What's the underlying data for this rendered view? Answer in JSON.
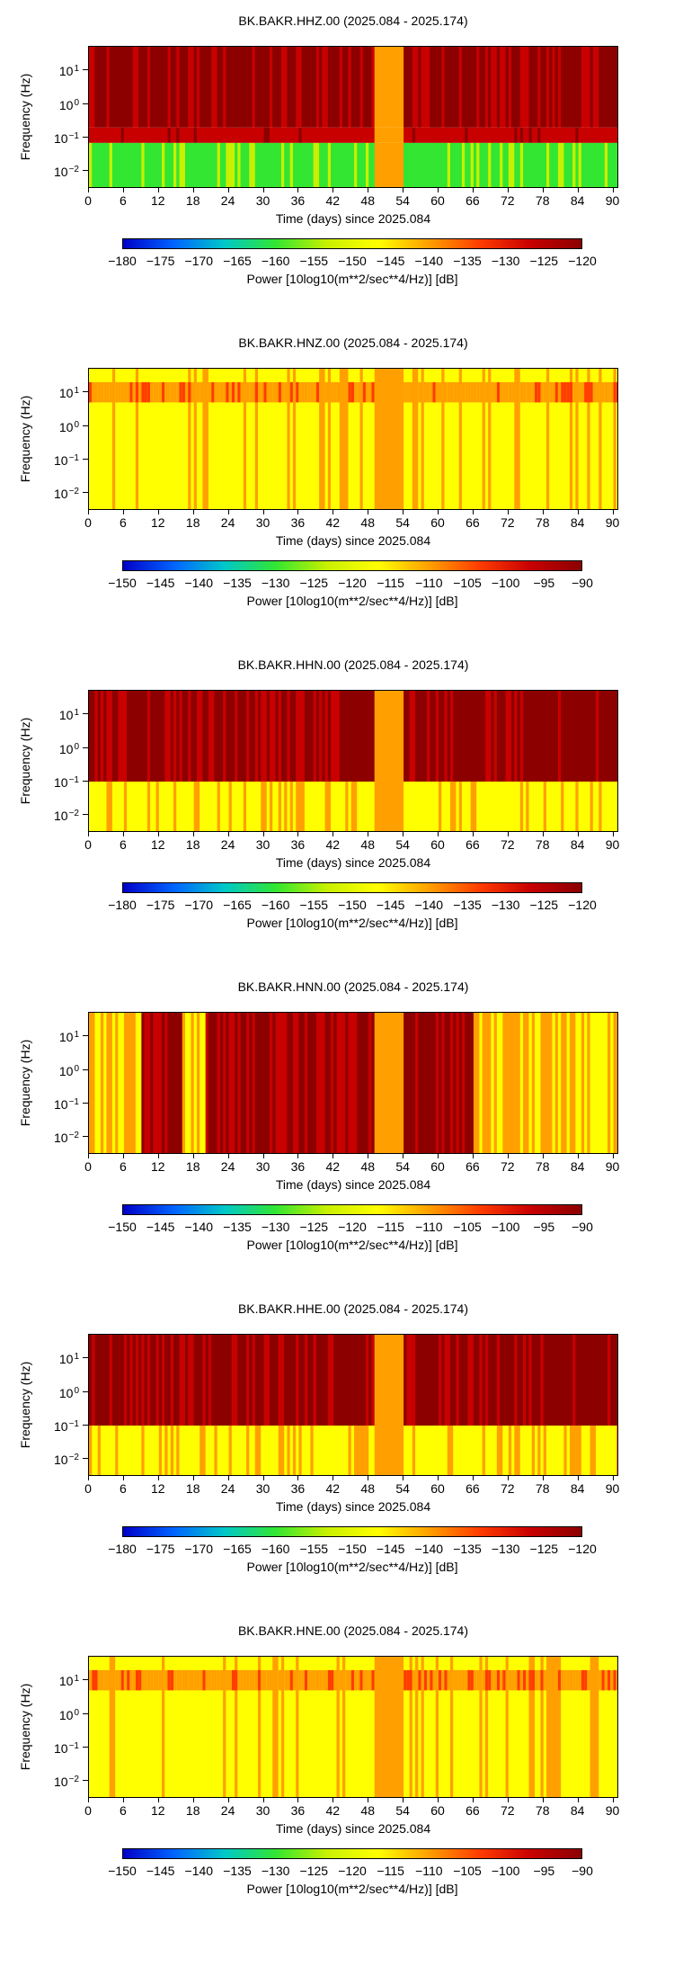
{
  "charts": [
    {
      "title": "BK.BAKR.HHZ.00 (2025.084 - 2025.174)",
      "ylabel": "Frequency (Hz)",
      "xlabel": "Time (days) since 2025.084",
      "colorbar_label": "Power [10log10(m**2/sec**4/Hz)] [dB]",
      "colorbar_ticks": [
        "−180",
        "−175",
        "−170",
        "−165",
        "−160",
        "−155",
        "−150",
        "−145",
        "−140",
        "−135",
        "−130",
        "−125",
        "−120"
      ]
    },
    {
      "title": "BK.BAKR.HNZ.00 (2025.084 - 2025.174)",
      "ylabel": "Frequency (Hz)",
      "xlabel": "Time (days) since 2025.084",
      "colorbar_label": "Power [10log10(m**2/sec**4/Hz)] [dB]",
      "colorbar_ticks": [
        "−150",
        "−145",
        "−140",
        "−135",
        "−130",
        "−125",
        "−120",
        "−115",
        "−110",
        "−105",
        "−100",
        "−95",
        "−90"
      ]
    },
    {
      "title": "BK.BAKR.HHN.00 (2025.084 - 2025.174)",
      "ylabel": "Frequency (Hz)",
      "xlabel": "Time (days) since 2025.084",
      "colorbar_label": "Power [10log10(m**2/sec**4/Hz)] [dB]",
      "colorbar_ticks": [
        "−180",
        "−175",
        "−170",
        "−165",
        "−160",
        "−155",
        "−150",
        "−145",
        "−140",
        "−135",
        "−130",
        "−125",
        "−120"
      ]
    },
    {
      "title": "BK.BAKR.HNN.00 (2025.084 - 2025.174)",
      "ylabel": "Frequency (Hz)",
      "xlabel": "Time (days) since 2025.084",
      "colorbar_label": "Power [10log10(m**2/sec**4/Hz)] [dB]",
      "colorbar_ticks": [
        "−150",
        "−145",
        "−140",
        "−135",
        "−130",
        "−125",
        "−120",
        "−115",
        "−110",
        "−105",
        "−100",
        "−95",
        "−90"
      ]
    },
    {
      "title": "BK.BAKR.HHE.00 (2025.084 - 2025.174)",
      "ylabel": "Frequency (Hz)",
      "xlabel": "Time (days) since 2025.084",
      "colorbar_label": "Power [10log10(m**2/sec**4/Hz)] [dB]",
      "colorbar_ticks": [
        "−180",
        "−175",
        "−170",
        "−165",
        "−160",
        "−155",
        "−150",
        "−145",
        "−140",
        "−135",
        "−130",
        "−125",
        "−120"
      ]
    },
    {
      "title": "BK.BAKR.HNE.00 (2025.084 - 2025.174)",
      "ylabel": "Frequency (Hz)",
      "xlabel": "Time (days) since 2025.084",
      "colorbar_label": "Power [10log10(m**2/sec**4/Hz)] [dB]",
      "colorbar_ticks": [
        "−150",
        "−145",
        "−140",
        "−135",
        "−130",
        "−125",
        "−120",
        "−115",
        "−110",
        "−105",
        "−100",
        "−95",
        "−90"
      ]
    }
  ],
  "chart_data": [
    {
      "type": "heatmap",
      "title": "BK.BAKR.HHZ.00 (2025.084 - 2025.174)",
      "xlim": [
        0,
        91
      ],
      "ylim_hz": [
        0.003,
        50
      ],
      "yscale": "log",
      "clim": [
        -180,
        -120
      ],
      "xticks": [
        "0",
        "6",
        "12",
        "18",
        "24",
        "30",
        "36",
        "42",
        "48",
        "54",
        "60",
        "66",
        "72",
        "78",
        "84",
        "90"
      ],
      "yticks": [
        "10^1",
        "10^0",
        "10^-1",
        "10^-2"
      ],
      "noise_bands": [
        {
          "hz_range": [
            0.2,
            50
          ],
          "level_db": -122
        },
        {
          "hz_range": [
            0.07,
            0.2
          ],
          "level_db": -126
        },
        {
          "hz_range": [
            0.003,
            0.07
          ],
          "level_db": -158
        }
      ],
      "data_gap_days": [
        49,
        54
      ]
    },
    {
      "type": "heatmap",
      "title": "BK.BAKR.HNZ.00 (2025.084 - 2025.174)",
      "xlim": [
        0,
        91
      ],
      "ylim_hz": [
        0.003,
        50
      ],
      "yscale": "log",
      "clim": [
        -150,
        -90
      ],
      "xticks": [
        "0",
        "6",
        "12",
        "18",
        "24",
        "30",
        "36",
        "42",
        "48",
        "54",
        "60",
        "66",
        "72",
        "78",
        "84",
        "90"
      ],
      "yticks": [
        "10^1",
        "10^0",
        "10^-1",
        "10^-2"
      ],
      "noise_bands": [
        {
          "hz_range": [
            5,
            20
          ],
          "level_db": -108
        },
        {
          "hz_range": [
            0.003,
            50
          ],
          "level_db": -115
        }
      ],
      "data_gap_days": [
        49,
        54
      ]
    },
    {
      "type": "heatmap",
      "title": "BK.BAKR.HHN.00 (2025.084 - 2025.174)",
      "xlim": [
        0,
        91
      ],
      "ylim_hz": [
        0.003,
        50
      ],
      "yscale": "log",
      "clim": [
        -180,
        -120
      ],
      "xticks": [
        "0",
        "6",
        "12",
        "18",
        "24",
        "30",
        "36",
        "42",
        "48",
        "54",
        "60",
        "66",
        "72",
        "78",
        "84",
        "90"
      ],
      "yticks": [
        "10^1",
        "10^0",
        "10^-1",
        "10^-2"
      ],
      "noise_bands": [
        {
          "hz_range": [
            0.1,
            50
          ],
          "level_db": -122
        },
        {
          "hz_range": [
            0.003,
            0.1
          ],
          "level_db": -145
        }
      ],
      "data_gap_days": [
        49,
        54
      ]
    },
    {
      "type": "heatmap",
      "title": "BK.BAKR.HNN.00 (2025.084 - 2025.174)",
      "xlim": [
        0,
        91
      ],
      "ylim_hz": [
        0.003,
        50
      ],
      "yscale": "log",
      "clim": [
        -150,
        -90
      ],
      "xticks": [
        "0",
        "6",
        "12",
        "18",
        "24",
        "30",
        "36",
        "42",
        "48",
        "54",
        "60",
        "66",
        "72",
        "78",
        "84",
        "90"
      ],
      "yticks": [
        "10^1",
        "10^0",
        "10^-1",
        "10^-2"
      ],
      "noise_bands": [
        {
          "hz_range": [
            0.003,
            50
          ],
          "level_db": -113
        }
      ],
      "high_power_days": [
        [
          9,
          16
        ],
        [
          20,
          49
        ],
        [
          54,
          66
        ]
      ],
      "data_gap_days": [
        49,
        54
      ]
    },
    {
      "type": "heatmap",
      "title": "BK.BAKR.HHE.00 (2025.084 - 2025.174)",
      "xlim": [
        0,
        91
      ],
      "ylim_hz": [
        0.003,
        50
      ],
      "yscale": "log",
      "clim": [
        -180,
        -120
      ],
      "xticks": [
        "0",
        "6",
        "12",
        "18",
        "24",
        "30",
        "36",
        "42",
        "48",
        "54",
        "60",
        "66",
        "72",
        "78",
        "84",
        "90"
      ],
      "yticks": [
        "10^1",
        "10^0",
        "10^-1",
        "10^-2"
      ],
      "noise_bands": [
        {
          "hz_range": [
            0.1,
            50
          ],
          "level_db": -122
        },
        {
          "hz_range": [
            0.003,
            0.1
          ],
          "level_db": -145
        }
      ],
      "data_gap_days": [
        49,
        54
      ]
    },
    {
      "type": "heatmap",
      "title": "BK.BAKR.HNE.00 (2025.084 - 2025.174)",
      "xlim": [
        0,
        91
      ],
      "ylim_hz": [
        0.003,
        50
      ],
      "yscale": "log",
      "clim": [
        -150,
        -90
      ],
      "xticks": [
        "0",
        "6",
        "12",
        "18",
        "24",
        "30",
        "36",
        "42",
        "48",
        "54",
        "60",
        "66",
        "72",
        "78",
        "84",
        "90"
      ],
      "yticks": [
        "10^1",
        "10^0",
        "10^-1",
        "10^-2"
      ],
      "noise_bands": [
        {
          "hz_range": [
            5,
            20
          ],
          "level_db": -108
        },
        {
          "hz_range": [
            0.003,
            50
          ],
          "level_db": -115
        }
      ],
      "data_gap_days": [
        49,
        54
      ]
    }
  ],
  "colors": {
    "colormap": [
      "#0000c8",
      "#0064ff",
      "#00c8c8",
      "#32e632",
      "#c8f000",
      "#ffff00",
      "#ffa000",
      "#ff3c00",
      "#c80000",
      "#8c0000"
    ]
  }
}
